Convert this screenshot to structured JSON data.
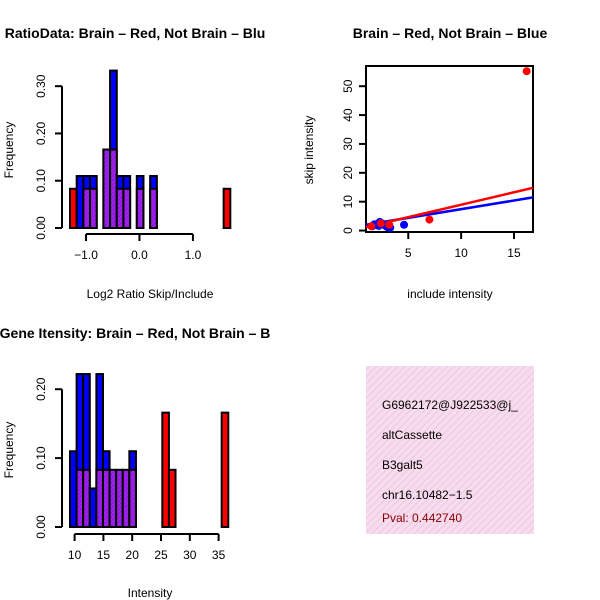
{
  "colors": {
    "brain": "#ff0000",
    "not_brain": "#0000ff",
    "overlap": "#a020f0",
    "info_bg": "#f7dcee",
    "pval": "#8b0000"
  },
  "chart_data": [
    {
      "id": "ratio-hist",
      "type": "bar",
      "title": "RatioData: Brain – Red, Not Brain – Blu",
      "xlabel": "Log2 Ratio Skip/Include",
      "ylabel": "Frequency",
      "xlim": [
        -1.3,
        1.75
      ],
      "ylim": [
        0,
        0.33
      ],
      "xticks": [
        -1.0,
        0.0,
        1.0
      ],
      "xtick_labels": [
        "−1.0",
        "0.0",
        "1.0"
      ],
      "yticks": [
        0.0,
        0.1,
        0.2,
        0.3
      ],
      "ytick_labels": [
        "0.00",
        "0.10",
        "0.20",
        "0.30"
      ],
      "bin_width": 0.125,
      "bin_starts": [
        -1.3,
        -1.175,
        -1.05,
        -0.925,
        -0.8,
        -0.675,
        -0.55,
        -0.425,
        -0.3,
        -0.175,
        -0.05,
        0.075,
        0.2,
        0.325,
        0.45,
        0.575,
        0.7,
        0.825,
        0.95,
        1.075,
        1.2,
        1.325,
        1.45,
        1.575
      ],
      "series": [
        {
          "name": "Not Brain",
          "color": "#0000ff",
          "values": [
            0,
            0.11,
            0.11,
            0.11,
            0,
            0.166,
            0.333,
            0.11,
            0.11,
            0,
            0.11,
            0,
            0.11,
            0,
            0,
            0,
            0,
            0,
            0,
            0,
            0,
            0,
            0,
            0
          ]
        },
        {
          "name": "Brain",
          "color": "#ff0000",
          "values": [
            0.083,
            0,
            0.083,
            0.083,
            0,
            0.166,
            0.166,
            0.083,
            0.083,
            0,
            0.083,
            0,
            0.083,
            0,
            0,
            0,
            0,
            0,
            0,
            0,
            0,
            0,
            0,
            0.083
          ]
        }
      ]
    },
    {
      "id": "intensity-scatter",
      "type": "scatter",
      "title": "Brain – Red, Not Brain – Blue",
      "xlabel": "include intensity",
      "ylabel": "skip intensity",
      "xlim": [
        1,
        16.8
      ],
      "ylim": [
        -0.5,
        57
      ],
      "xticks": [
        5,
        10,
        15
      ],
      "xtick_labels": [
        "5",
        "10",
        "15"
      ],
      "yticks": [
        0,
        10,
        20,
        30,
        40,
        50
      ],
      "ytick_labels": [
        "0",
        "10",
        "20",
        "30",
        "40",
        "50"
      ],
      "series": [
        {
          "name": "Not Brain",
          "color": "#0000ff",
          "x": [
            1.6,
            2.0,
            2.3,
            2.5,
            2.8,
            3.0,
            3.3,
            4.6,
            2.2,
            1.8
          ],
          "y": [
            1.5,
            2.0,
            3.0,
            2.5,
            1.8,
            1.2,
            1.0,
            2.0,
            1.6,
            2.2
          ],
          "fit": {
            "x": [
              1,
              16.8
            ],
            "y": [
              2.0,
              11.5
            ]
          }
        },
        {
          "name": "Brain",
          "color": "#ff0000",
          "x": [
            1.5,
            2.4,
            3.2,
            7.0,
            16.2
          ],
          "y": [
            1.5,
            2.5,
            2.0,
            3.8,
            55.2
          ],
          "fit": {
            "x": [
              1,
              16.8
            ],
            "y": [
              1.2,
              14.8
            ]
          }
        }
      ]
    },
    {
      "id": "intensity-hist",
      "type": "bar",
      "title": "Gene Itensity: Brain – Red, Not Brain – B",
      "xlabel": "Intensity",
      "ylabel": "Frequency",
      "xlim": [
        9.2,
        37.5
      ],
      "ylim": [
        0,
        0.225
      ],
      "xticks": [
        10,
        15,
        20,
        25,
        30,
        35
      ],
      "xtick_labels": [
        "10",
        "15",
        "20",
        "25",
        "30",
        "35"
      ],
      "yticks": [
        0.0,
        0.1,
        0.2
      ],
      "ytick_labels": [
        "0.00",
        "0.10",
        "0.20"
      ],
      "bin_width": 1.145,
      "bin_starts": [
        9.2,
        10.345,
        11.49,
        12.635,
        13.78,
        14.925,
        16.07,
        17.215,
        18.36,
        19.505,
        20.65,
        21.795,
        22.94,
        24.085,
        25.23,
        26.375,
        27.52,
        28.665,
        29.81,
        30.955,
        32.1,
        33.245,
        34.39,
        35.535
      ],
      "series": [
        {
          "name": "Not Brain",
          "color": "#0000ff",
          "values": [
            0.11,
            0.222,
            0.222,
            0.056,
            0.222,
            0.11,
            0.056,
            0.056,
            0.056,
            0.11,
            0,
            0,
            0,
            0,
            0,
            0,
            0,
            0,
            0,
            0,
            0,
            0,
            0,
            0
          ]
        },
        {
          "name": "Brain",
          "color": "#ff0000",
          "values": [
            0,
            0.083,
            0.083,
            0,
            0.083,
            0.083,
            0.083,
            0.083,
            0.083,
            0.083,
            0,
            0,
            0,
            0,
            0.166,
            0.083,
            0,
            0,
            0,
            0,
            0,
            0,
            0,
            0.166
          ]
        }
      ]
    }
  ],
  "info": {
    "line1": "G6962172@J922533@j_",
    "line2": "altCassette",
    "line3": "B3galt5",
    "line4": "chr16.10482−1.5",
    "pval": "Pval: 0.442740"
  }
}
